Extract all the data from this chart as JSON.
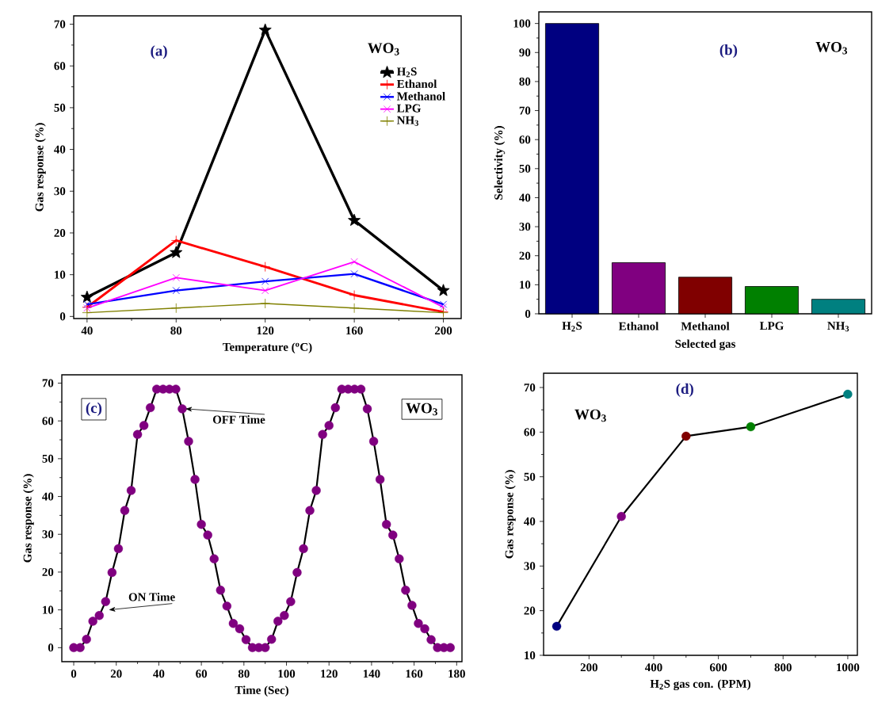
{
  "chart_data": [
    {
      "type": "line",
      "xlabel": "Temperature ($^{o}$C)",
      "ylabel": "Gas response (%)",
      "x": [
        40,
        80,
        120,
        160,
        200
      ],
      "series": [
        {
          "name": "H$_{2}$S",
          "color": "#000000",
          "marker": "star",
          "values": [
            4.6,
            15.3,
            68.6,
            23.0,
            6.2
          ]
        },
        {
          "name": "Ethanol",
          "color": "#ff0000",
          "marker": "plus",
          "values": [
            2.2,
            18.2,
            11.9,
            5.1,
            1.1
          ]
        },
        {
          "name": "Methanol",
          "color": "#0000ff",
          "marker": "cross",
          "values": [
            2.9,
            6.2,
            8.4,
            10.2,
            2.9
          ]
        },
        {
          "name": "LPG",
          "color": "#ff00ff",
          "marker": "cross",
          "values": [
            2.0,
            9.3,
            6.2,
            13.1,
            2.2
          ]
        },
        {
          "name": "NH$_{3}$",
          "color": "#808000",
          "marker": "plus",
          "values": [
            0.9,
            2.0,
            3.1,
            2.0,
            0.9
          ]
        }
      ],
      "xlim": [
        34,
        208
      ],
      "ylim": [
        -0.5,
        72
      ],
      "xticks": [
        40,
        80,
        120,
        160,
        200
      ],
      "yticks": [
        0,
        10,
        20,
        30,
        40,
        50,
        60,
        70
      ],
      "legend": "top right",
      "line_style": "solid",
      "annotations": [
        "(a)",
        "WO$_{3}$"
      ]
    },
    {
      "type": "bar",
      "xlabel": "Selected gas",
      "ylabel": "Selectivity (%)",
      "categories": [
        "H$_{2}$S",
        "Ethanol",
        "Methanol",
        "LPG",
        "NH$_{3}$"
      ],
      "values": [
        100,
        17.6,
        12.6,
        9.4,
        5.0
      ],
      "colors": [
        "#000080",
        "#800080",
        "#800000",
        "#008000",
        "#008080"
      ],
      "ylim": [
        0,
        104
      ],
      "yticks": [
        0,
        10,
        20,
        30,
        40,
        50,
        60,
        70,
        80,
        90,
        100
      ],
      "annotations": [
        "(b)",
        "WO$_{3}$"
      ]
    },
    {
      "type": "line",
      "xlabel": "Time (Sec)",
      "ylabel": "Gas response (%)",
      "x": [
        0,
        3,
        6,
        9,
        12,
        15,
        18,
        21,
        24,
        27,
        30,
        33,
        36,
        39,
        42,
        45,
        48,
        51,
        54,
        57,
        60,
        63,
        66,
        69,
        72,
        75,
        78,
        81,
        84,
        87,
        90,
        93,
        96,
        99,
        102,
        105,
        108,
        111,
        114,
        117,
        120,
        123,
        126,
        129,
        132,
        135,
        138,
        141,
        144,
        147,
        150,
        153,
        156,
        159,
        162,
        165,
        168,
        171,
        174,
        177
      ],
      "values": [
        0,
        0,
        2.2,
        7.0,
        8.5,
        12.2,
        19.9,
        26.2,
        36.3,
        41.6,
        56.4,
        58.8,
        63.5,
        68.4,
        68.4,
        68.4,
        68.4,
        63.2,
        54.6,
        44.5,
        32.6,
        29.8,
        23.5,
        15.2,
        11.0,
        6.4,
        5.0,
        2.1,
        0,
        0,
        0,
        2.2,
        7.0,
        8.5,
        12.2,
        19.9,
        26.2,
        36.3,
        41.6,
        56.4,
        58.8,
        63.5,
        68.4,
        68.4,
        68.4,
        68.4,
        63.2,
        54.6,
        44.5,
        32.6,
        29.8,
        23.5,
        15.2,
        11.2,
        6.4,
        5.0,
        2.1,
        0,
        0,
        0
      ],
      "color": "#000000",
      "colors": [
        "#800080",
        "#800080",
        "#800080",
        "#800080",
        "#800080",
        "#800080",
        "#800080",
        "#800080",
        "#800080",
        "#800080",
        "#800080",
        "#800080",
        "#800080",
        "#800080",
        "#800080",
        "#800080",
        "#800080",
        "#800080",
        "#800080",
        "#800080",
        "#800080",
        "#800080",
        "#800080",
        "#800080",
        "#800080",
        "#800080",
        "#800080",
        "#800080",
        "#800080",
        "#800080",
        "#800080",
        "#800080",
        "#800080",
        "#800080",
        "#800080",
        "#800080",
        "#800080",
        "#800080",
        "#800080",
        "#800080",
        "#800080",
        "#800080",
        "#800080",
        "#800080",
        "#800080",
        "#800080",
        "#800080",
        "#800080",
        "#800080",
        "#800080",
        "#800080",
        "#800080",
        "#800080",
        "#800080",
        "#800080",
        "#800080",
        "#800080",
        "#800080",
        "#800080",
        "#800080"
      ],
      "marker": "circle",
      "line_style": "solid",
      "xlim": [
        -5.6,
        182.5
      ],
      "ylim": [
        -3.7,
        72.2
      ],
      "xticks": [
        0,
        20,
        40,
        60,
        80,
        100,
        120,
        140,
        160,
        180
      ],
      "yticks": [
        0,
        10,
        20,
        30,
        40,
        50,
        60,
        70
      ],
      "annotations": [
        "(c)",
        "WO$_{3}$",
        {
          "text": "OFF Time",
          "x": 51,
          "y": 63.2
        },
        {
          "text": "ON Time",
          "x": 15,
          "y": 10
        }
      ]
    },
    {
      "type": "line",
      "xlabel": "H$_{2}$S gas con. (PPM)",
      "ylabel": "Gas response (%)",
      "x": [
        100,
        300,
        500,
        700,
        1000
      ],
      "values": [
        16.5,
        41.1,
        59.1,
        61.2,
        68.5
      ],
      "color": "#000000",
      "colors": [
        "#000080",
        "#800080",
        "#800000",
        "#008000",
        "#008080"
      ],
      "marker": "circle",
      "line_style": "solid",
      "xlim": [
        59.5,
        1029.7
      ],
      "ylim": [
        10,
        73.2
      ],
      "xticks": [
        200,
        400,
        600,
        800,
        1000
      ],
      "yticks": [
        10,
        20,
        30,
        40,
        50,
        60,
        70
      ],
      "annotations": [
        "(d)",
        "WO$_{3}$"
      ]
    }
  ]
}
